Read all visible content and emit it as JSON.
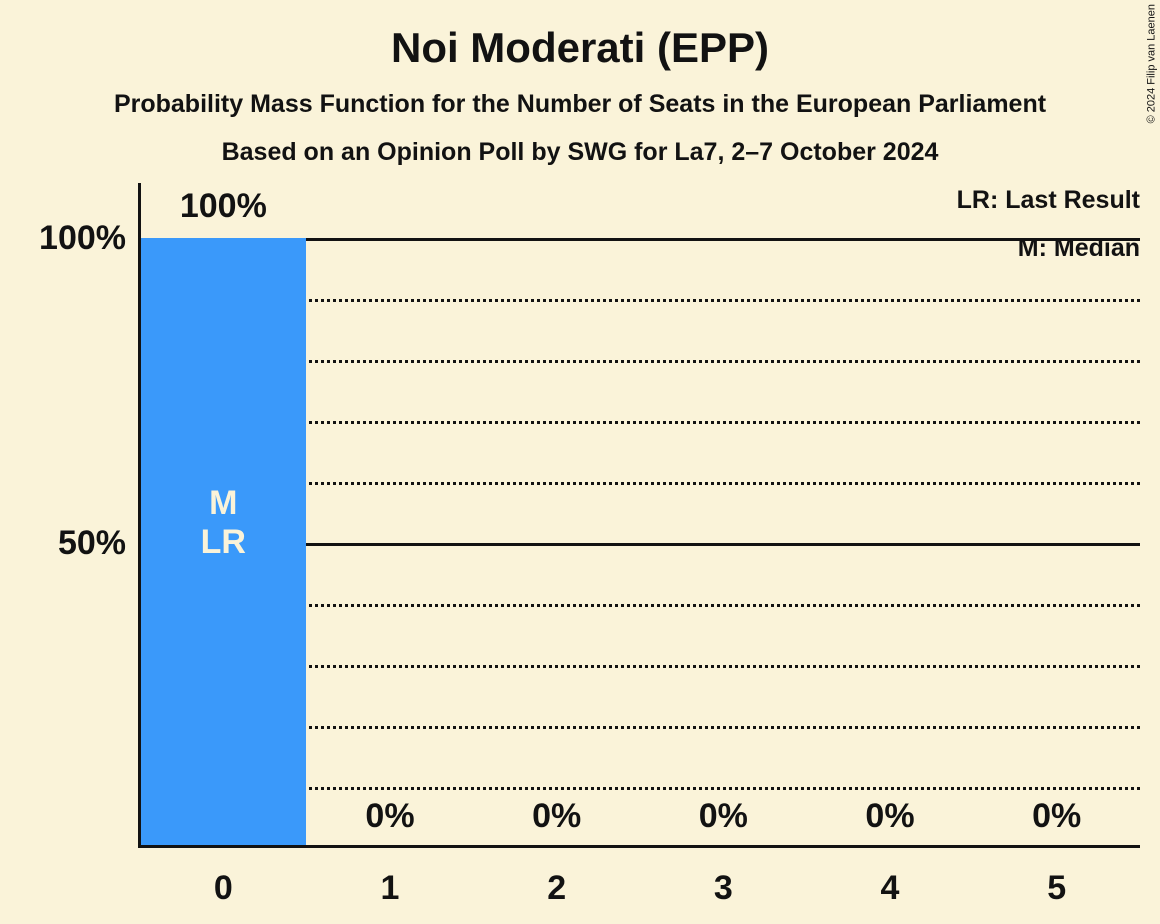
{
  "title": "Noi Moderati (EPP)",
  "subtitle1": "Probability Mass Function for the Number of Seats in the European Parliament",
  "subtitle2": "Based on an Opinion Poll by SWG for La7, 2–7 October 2024",
  "copyright": "© 2024 Filip van Laenen",
  "legend": {
    "lr": "LR: Last Result",
    "m": "M: Median"
  },
  "colors": {
    "background": "#FAF3D9",
    "bar": "#3A99FA",
    "text": "#121212",
    "bar_annotation_text": "#FAF3D9"
  },
  "y_axis": {
    "labels": [
      {
        "text": "100%",
        "value": 100
      },
      {
        "text": "50%",
        "value": 50
      }
    ]
  },
  "chart_data": {
    "type": "bar",
    "title": "Noi Moderati (EPP)",
    "xlabel": "",
    "ylabel": "",
    "categories": [
      "0",
      "1",
      "2",
      "3",
      "4",
      "5"
    ],
    "values": [
      100,
      0,
      0,
      0,
      0,
      0
    ],
    "bar_labels": [
      "100%",
      "0%",
      "0%",
      "0%",
      "0%",
      "0%"
    ],
    "ylim": [
      0,
      100
    ],
    "solid_gridlines": [
      100,
      50
    ],
    "dotted_gridlines": [
      90,
      80,
      70,
      60,
      40,
      30,
      20,
      10
    ],
    "grid_on": true,
    "legend_position": "top-right",
    "annotations": [
      {
        "index": 0,
        "lines": [
          "M",
          "LR"
        ]
      }
    ]
  }
}
